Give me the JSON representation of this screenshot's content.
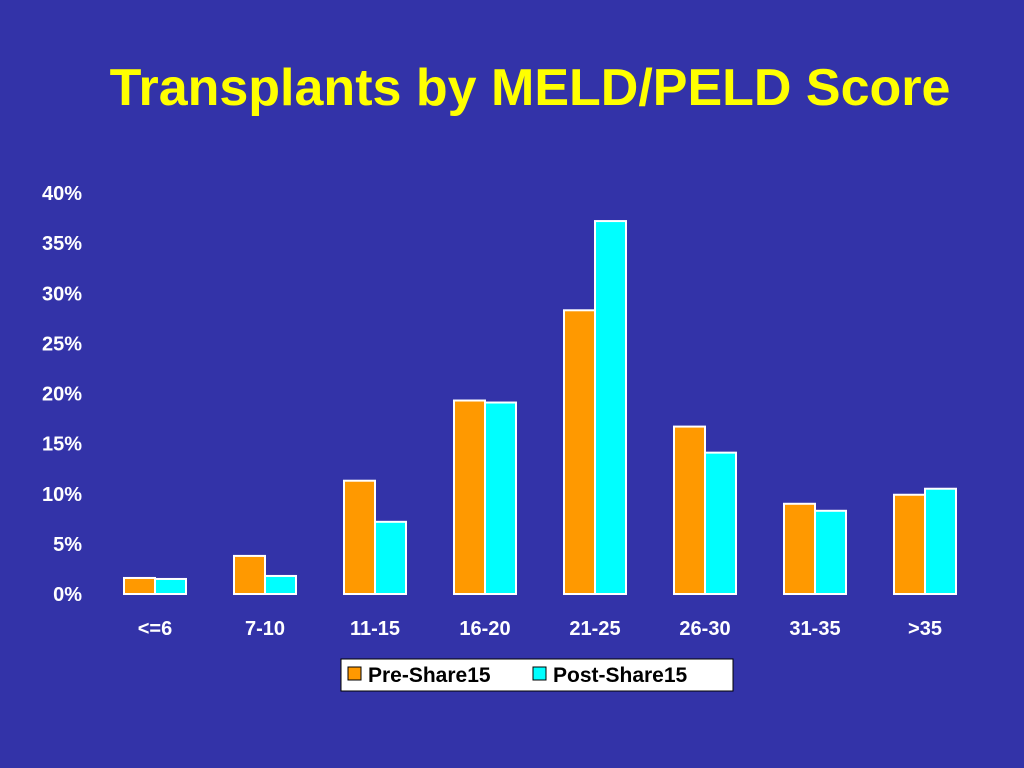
{
  "slide": {
    "title": "Transplants by MELD/PELD Score",
    "background": "#3333a8",
    "title_color": "#ffff00"
  },
  "chart_data": {
    "type": "bar",
    "title": "Transplants by MELD/PELD Score",
    "xlabel": "",
    "ylabel": "",
    "categories": [
      "<=6",
      "7-10",
      "11-15",
      "16-20",
      "21-25",
      "26-30",
      "31-35",
      ">35"
    ],
    "series": [
      {
        "name": "Pre-Share15",
        "color": "#ff9900",
        "values": [
          1.6,
          3.8,
          11.3,
          19.3,
          28.3,
          16.7,
          9.0,
          9.9
        ]
      },
      {
        "name": "Post-Share15",
        "color": "#00ffff",
        "values": [
          1.5,
          1.8,
          7.2,
          19.1,
          37.2,
          14.1,
          8.3,
          10.5
        ]
      }
    ],
    "ylim": [
      0,
      40
    ],
    "yticks": [
      "0%",
      "5%",
      "10%",
      "15%",
      "20%",
      "25%",
      "30%",
      "35%",
      "40%"
    ],
    "grid": false,
    "legend_position": "bottom"
  }
}
